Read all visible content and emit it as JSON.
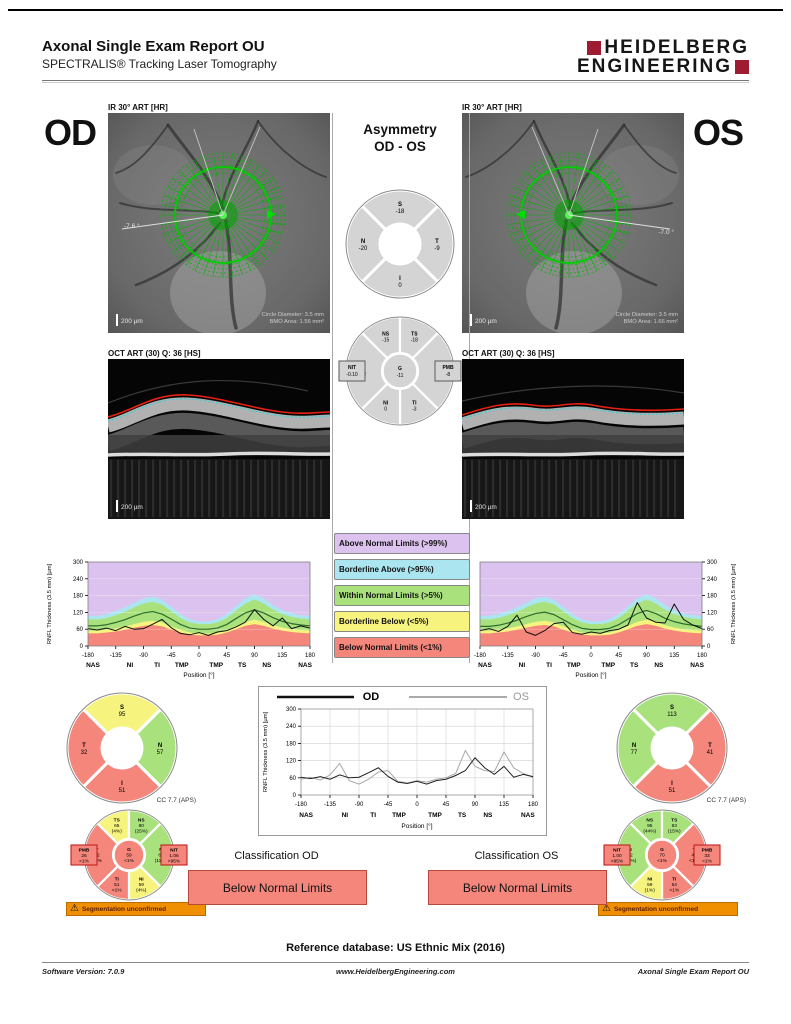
{
  "header": {
    "title": "Axonal Single Exam Report OU",
    "subtitle": "SPECTRALIS® Tracking Laser Tomography",
    "logo_line1": "HEIDELBERG",
    "logo_line2": "ENGINEERING"
  },
  "od": {
    "eye_label": "OD",
    "ir_label": "IR 30° ART [HR]",
    "angle": "-7.6 °",
    "scale": "200 µm",
    "circle_diameter": "Circle Diameter: 3.5 mm",
    "bmo_area": "BMO Area: 1.56 mm²",
    "oct_label": "OCT ART (30) Q: 36 [HS]",
    "oct_scale": "200 µm"
  },
  "os": {
    "eye_label": "OS",
    "ir_label": "IR 30° ART [HR]",
    "angle": "-7.0 °",
    "scale": "200 µm",
    "circle_diameter": "Circle Diameter: 3.5 mm",
    "bmo_area": "BMO Area: 1.66 mm²",
    "oct_label": "OCT ART (30) Q: 36 [HS]",
    "oct_scale": "200 µm"
  },
  "asymmetry": {
    "title1": "Asymmetry",
    "title2": "OD - OS",
    "quad": {
      "sectors": [
        {
          "pos": "top",
          "label": "S",
          "value": "-18",
          "color": "gray"
        },
        {
          "pos": "right",
          "label": "T",
          "value": "-9",
          "color": "gray"
        },
        {
          "pos": "bottom",
          "label": "I",
          "value": "0",
          "color": "gray"
        },
        {
          "pos": "left",
          "label": "N",
          "value": "-20",
          "color": "gray"
        }
      ]
    },
    "ring": {
      "sectors": [
        {
          "pos": "tl",
          "label": "NS",
          "value": "-15",
          "color": "gray"
        },
        {
          "pos": "tr",
          "label": "TS",
          "value": "-18",
          "color": "gray"
        },
        {
          "pos": "right",
          "label": "T",
          "value": "-9",
          "color": "gray"
        },
        {
          "pos": "br",
          "label": "TI",
          "value": "-3",
          "color": "gray"
        },
        {
          "pos": "bl",
          "label": "NI",
          "value": "0",
          "color": "gray"
        },
        {
          "pos": "left",
          "label": "N",
          "value": "-22",
          "color": "gray"
        }
      ],
      "center": {
        "label": "G",
        "value": "-11",
        "color": "gray"
      },
      "left_box": {
        "label": "NIT",
        "value": "-0.10",
        "color": "gray"
      },
      "right_box": {
        "label": "PMB",
        "value": "-8",
        "color": "gray"
      }
    }
  },
  "legend": {
    "items": [
      {
        "label": "Above Normal Limits  (>99%)",
        "color": "#dcc2ee"
      },
      {
        "label": "Borderline Above  (>95%)",
        "color": "#abe6f0"
      },
      {
        "label": "Within Normal Limits  (>5%)",
        "color": "#a9e27d"
      },
      {
        "label": "Borderline Below  (<5%)",
        "color": "#f6f47e"
      },
      {
        "label": "Below Normal Limits  (<1%)",
        "color": "#f4867c"
      }
    ]
  },
  "pies": {
    "cc_label": "CC 7.7 (APS)",
    "warning": "Segmentation unconfirmed",
    "od_quad": {
      "sectors": [
        {
          "pos": "top",
          "label": "S",
          "value": "95",
          "color": "yellow"
        },
        {
          "pos": "right",
          "label": "N",
          "value": "57",
          "color": "green"
        },
        {
          "pos": "bottom",
          "label": "I",
          "value": "51",
          "color": "red"
        },
        {
          "pos": "left",
          "label": "T",
          "value": "32",
          "color": "red"
        }
      ]
    },
    "os_quad": {
      "sectors": [
        {
          "pos": "top",
          "label": "S",
          "value": "113",
          "color": "green"
        },
        {
          "pos": "right",
          "label": "T",
          "value": "41",
          "color": "red"
        },
        {
          "pos": "bottom",
          "label": "I",
          "value": "51",
          "color": "red"
        },
        {
          "pos": "left",
          "label": "N",
          "value": "77",
          "color": "green"
        }
      ]
    },
    "od_sectors": {
      "sectors": [
        {
          "pos": "tl",
          "label": "TS",
          "value": "65",
          "pct": "(4%)",
          "color": "yellow"
        },
        {
          "pos": "tr",
          "label": "NS",
          "value": "80",
          "pct": "(25%)",
          "color": "green"
        },
        {
          "pos": "right",
          "label": "N",
          "value": "63",
          "pct": "(11%)",
          "color": "green"
        },
        {
          "pos": "br",
          "label": "NI",
          "value": "59",
          "pct": "(4%)",
          "color": "yellow"
        },
        {
          "pos": "bl",
          "label": "TI",
          "value": "51",
          "pct": "<1%",
          "color": "red"
        },
        {
          "pos": "left",
          "label": "T",
          "value": "32",
          "pct": "<1%",
          "color": "red"
        }
      ],
      "center": {
        "label": "G",
        "value": "59",
        "pct": "<1%",
        "color": "red"
      },
      "left_box": {
        "label": "PMB",
        "value": "26",
        "pct": "<1%",
        "color": "red"
      },
      "right_box": {
        "label": "NIT",
        "value": "1.06",
        "pct": ">95%",
        "color": "red"
      }
    },
    "os_sectors": {
      "sectors": [
        {
          "pos": "tl",
          "label": "NS",
          "value": "95",
          "pct": "(44%)",
          "color": "green"
        },
        {
          "pos": "tr",
          "label": "TS",
          "value": "83",
          "pct": "(15%)",
          "color": "green"
        },
        {
          "pos": "right",
          "label": "T",
          "value": "41",
          "pct": "<1%",
          "color": "red"
        },
        {
          "pos": "br",
          "label": "TI",
          "value": "54",
          "pct": "<1%",
          "color": "red"
        },
        {
          "pos": "bl",
          "label": "NI",
          "value": "59",
          "pct": "(1%)",
          "color": "yellow"
        },
        {
          "pos": "left",
          "label": "N",
          "value": "82",
          "pct": "(55%)",
          "color": "green"
        }
      ],
      "center": {
        "label": "G",
        "value": "70",
        "pct": "<1%",
        "color": "red"
      },
      "left_box": {
        "label": "NIT",
        "value": "1.00",
        "pct": ">95%",
        "color": "red"
      },
      "right_box": {
        "label": "PMB",
        "value": "33",
        "pct": "<1%",
        "color": "red"
      }
    }
  },
  "comparison": {
    "od_label": "OD",
    "os_label": "OS"
  },
  "classification": {
    "od_title": "Classification OD",
    "os_title": "Classification OS",
    "od_value": "Below Normal Limits",
    "os_value": "Below Normal Limits"
  },
  "footer": {
    "reference": "Reference database: US Ethnic Mix (2016)",
    "software": "Software Version: 7.0.9",
    "url": "www.HeidelbergEngineering.com",
    "report": "Axonal Single Exam Report OU"
  },
  "colors": {
    "purple": "#dcc2ee",
    "cyan": "#abe6f0",
    "green": "#a9e27d",
    "yellow": "#f6f47e",
    "red": "#f4867c",
    "gray": "#d4d4d4",
    "warning_orange": "#f09000",
    "brand_red": "#9e1b32"
  },
  "chart_data": {
    "type": "line",
    "rnfl": {
      "ylabel": "RNFL Thickness (3.5 mm) [µm]",
      "xlabel": "Position [°]",
      "ylim": [
        0,
        300
      ],
      "yticks": [
        0,
        60,
        120,
        180,
        240,
        300
      ],
      "xticks": [
        -180,
        -135,
        -90,
        -45,
        0,
        45,
        90,
        135,
        180
      ],
      "sectors": [
        "NAS",
        "NI",
        "TI",
        "TMP",
        "TMP",
        "TS",
        "NS",
        "NAS"
      ],
      "sector_positions": [
        -172,
        -112,
        -68,
        -28,
        28,
        70,
        110,
        172
      ],
      "x": [
        -180,
        -165,
        -150,
        -135,
        -120,
        -105,
        -90,
        -75,
        -60,
        -45,
        -30,
        -15,
        0,
        15,
        30,
        45,
        60,
        75,
        90,
        105,
        120,
        135,
        150,
        165,
        180
      ],
      "bands": {
        "red_top": [
          45,
          45,
          48,
          52,
          58,
          65,
          72,
          75,
          70,
          58,
          48,
          40,
          38,
          38,
          40,
          48,
          60,
          72,
          78,
          72,
          62,
          55,
          50,
          47,
          45
        ],
        "yellow_top": [
          55,
          55,
          58,
          63,
          70,
          78,
          86,
          90,
          84,
          70,
          58,
          48,
          45,
          45,
          48,
          58,
          72,
          86,
          94,
          86,
          74,
          66,
          60,
          57,
          55
        ],
        "green_top": [
          95,
          95,
          100,
          110,
          122,
          138,
          152,
          158,
          148,
          124,
          100,
          84,
          78,
          78,
          84,
          100,
          126,
          152,
          166,
          152,
          130,
          114,
          104,
          98,
          95
        ],
        "cyan_top": [
          108,
          108,
          114,
          125,
          138,
          155,
          170,
          176,
          165,
          140,
          114,
          95,
          88,
          88,
          95,
          114,
          142,
          170,
          185,
          170,
          146,
          128,
          117,
          110,
          108
        ]
      },
      "od_mean": [
        72,
        72,
        76,
        84,
        94,
        107,
        118,
        123,
        114,
        96,
        77,
        64,
        60,
        60,
        64,
        77,
        98,
        118,
        129,
        118,
        101,
        88,
        80,
        75,
        72
      ],
      "os_mean": [
        70,
        70,
        74,
        82,
        92,
        105,
        116,
        121,
        112,
        94,
        76,
        63,
        59,
        59,
        63,
        76,
        96,
        116,
        127,
        116,
        99,
        87,
        79,
        74,
        70
      ],
      "od_measured": [
        62,
        57,
        64,
        55,
        70,
        60,
        62,
        78,
        95,
        65,
        45,
        40,
        48,
        38,
        50,
        55,
        68,
        85,
        130,
        95,
        72,
        100,
        62,
        72,
        64
      ],
      "os_measured": [
        55,
        62,
        52,
        70,
        110,
        50,
        38,
        55,
        80,
        85,
        48,
        42,
        50,
        45,
        55,
        60,
        75,
        155,
        100,
        85,
        82,
        150,
        95,
        75,
        62
      ]
    }
  }
}
